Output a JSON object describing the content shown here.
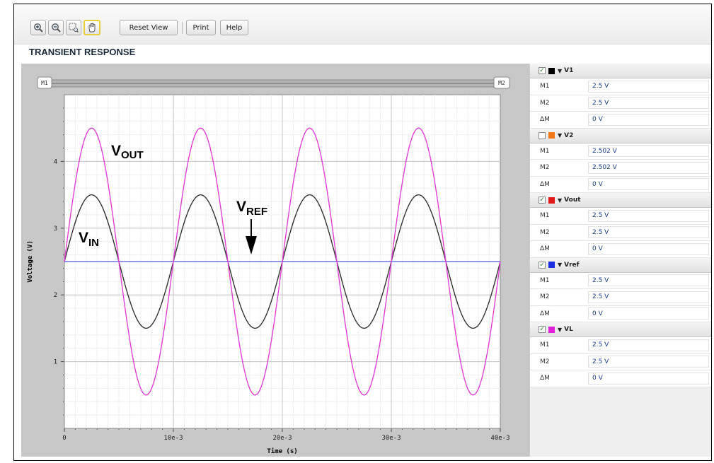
{
  "toolbar": {
    "zoom_in_icon": "magnifier-plus-icon",
    "zoom_out_icon": "magnifier-minus-icon",
    "zoom_box_icon": "zoom-region-icon",
    "pan_icon": "hand-pan-icon",
    "reset_label": "Reset View",
    "print_label": "Print",
    "help_label": "Help"
  },
  "title": "TRANSIENT RESPONSE",
  "markers": {
    "m1": "M1",
    "m2": "M2"
  },
  "chart_data": {
    "type": "line",
    "xlabel": "Time (s)",
    "ylabel": "Voltage (V)",
    "xlim": [
      0,
      0.04
    ],
    "ylim": [
      0,
      5
    ],
    "xticks": [
      0,
      0.01,
      0.02,
      0.03,
      0.04
    ],
    "xticklabels": [
      "0",
      "10e-3",
      "20e-3",
      "30e-3",
      "40e-3"
    ],
    "yticks": [
      1,
      2,
      3,
      4
    ],
    "yticklabels": [
      "1",
      "2",
      "3",
      "4"
    ],
    "grid": true,
    "series": [
      {
        "name": "VIN",
        "color": "#333333",
        "offset": 2.5,
        "amplitude": 1.0,
        "period": 0.01,
        "samples": 401
      },
      {
        "name": "VOUT",
        "color": "#e040d8",
        "offset": 2.5,
        "amplitude": 2.0,
        "period": 0.01,
        "samples": 401
      },
      {
        "name": "VREF",
        "color": "#6a74e8",
        "offset": 2.5,
        "amplitude": 0,
        "period": 0.01,
        "samples": 2
      }
    ],
    "annotations": [
      {
        "main": "V",
        "sub": "OUT"
      },
      {
        "main": "V",
        "sub": "IN"
      },
      {
        "main": "V",
        "sub": "REF"
      }
    ]
  },
  "side": {
    "groups": [
      {
        "name": "V1",
        "checked": true,
        "color": "#000000",
        "rows": [
          {
            "label": "M1",
            "value": "2.5 V"
          },
          {
            "label": "M2",
            "value": "2.5 V"
          },
          {
            "label": "ΔM",
            "value": "0 V"
          }
        ]
      },
      {
        "name": "V2",
        "checked": false,
        "color": "#f07818",
        "rows": [
          {
            "label": "M1",
            "value": "2.502 V"
          },
          {
            "label": "M2",
            "value": "2.502 V"
          },
          {
            "label": "ΔM",
            "value": "0 V"
          }
        ]
      },
      {
        "name": "Vout",
        "checked": true,
        "color": "#e01818",
        "rows": [
          {
            "label": "M1",
            "value": "2.5 V"
          },
          {
            "label": "M2",
            "value": "2.5 V"
          },
          {
            "label": "ΔM",
            "value": "0 V"
          }
        ]
      },
      {
        "name": "Vref",
        "checked": true,
        "color": "#1a2ee0",
        "rows": [
          {
            "label": "M1",
            "value": "2.5 V"
          },
          {
            "label": "M2",
            "value": "2.5 V"
          },
          {
            "label": "ΔM",
            "value": "0 V"
          }
        ]
      },
      {
        "name": "VL",
        "checked": true,
        "color": "#e020d8",
        "rows": [
          {
            "label": "M1",
            "value": "2.5 V"
          },
          {
            "label": "M2",
            "value": "2.5 V"
          },
          {
            "label": "ΔM",
            "value": "0 V"
          }
        ]
      }
    ]
  }
}
